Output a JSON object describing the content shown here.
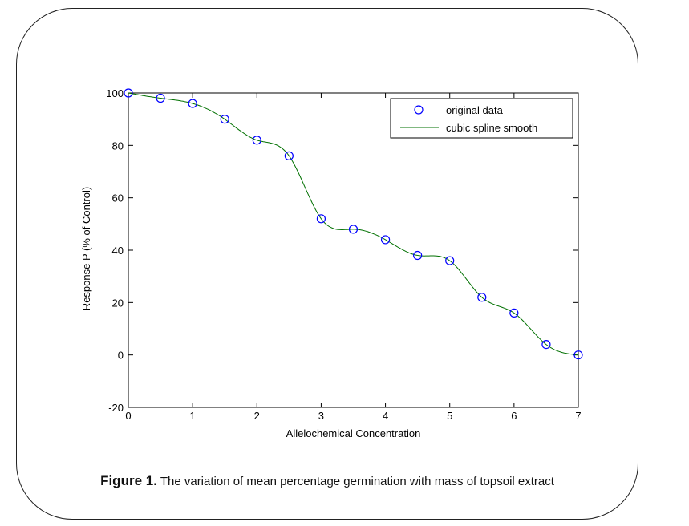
{
  "chart_data": {
    "type": "line",
    "xlabel": "Allelochemical Concentration",
    "ylabel": "Response P (% of Control)",
    "xlim": [
      0,
      7
    ],
    "ylim": [
      -20,
      100
    ],
    "xticks": [
      "0",
      "1",
      "2",
      "3",
      "4",
      "5",
      "6",
      "7"
    ],
    "yticks": [
      "-20",
      "0",
      "20",
      "40",
      "60",
      "80",
      "100"
    ],
    "grid": false,
    "legend_position": "top-right",
    "series": [
      {
        "name": "original data",
        "kind": "markers",
        "marker": "circle",
        "color": "#0000ff",
        "x": [
          0,
          0.5,
          1,
          1.5,
          2,
          2.5,
          3,
          3.5,
          4,
          4.5,
          5,
          5.5,
          6,
          6.5,
          7
        ],
        "y": [
          100,
          98,
          96,
          90,
          82,
          76,
          52,
          48,
          44,
          38,
          36,
          22,
          16,
          4,
          0
        ]
      },
      {
        "name": "cubic spline smooth",
        "kind": "line",
        "color": "#007000"
      }
    ]
  },
  "caption": {
    "label": "Figure 1.",
    "text": " The variation of mean percentage germination with mass of topsoil extract"
  }
}
